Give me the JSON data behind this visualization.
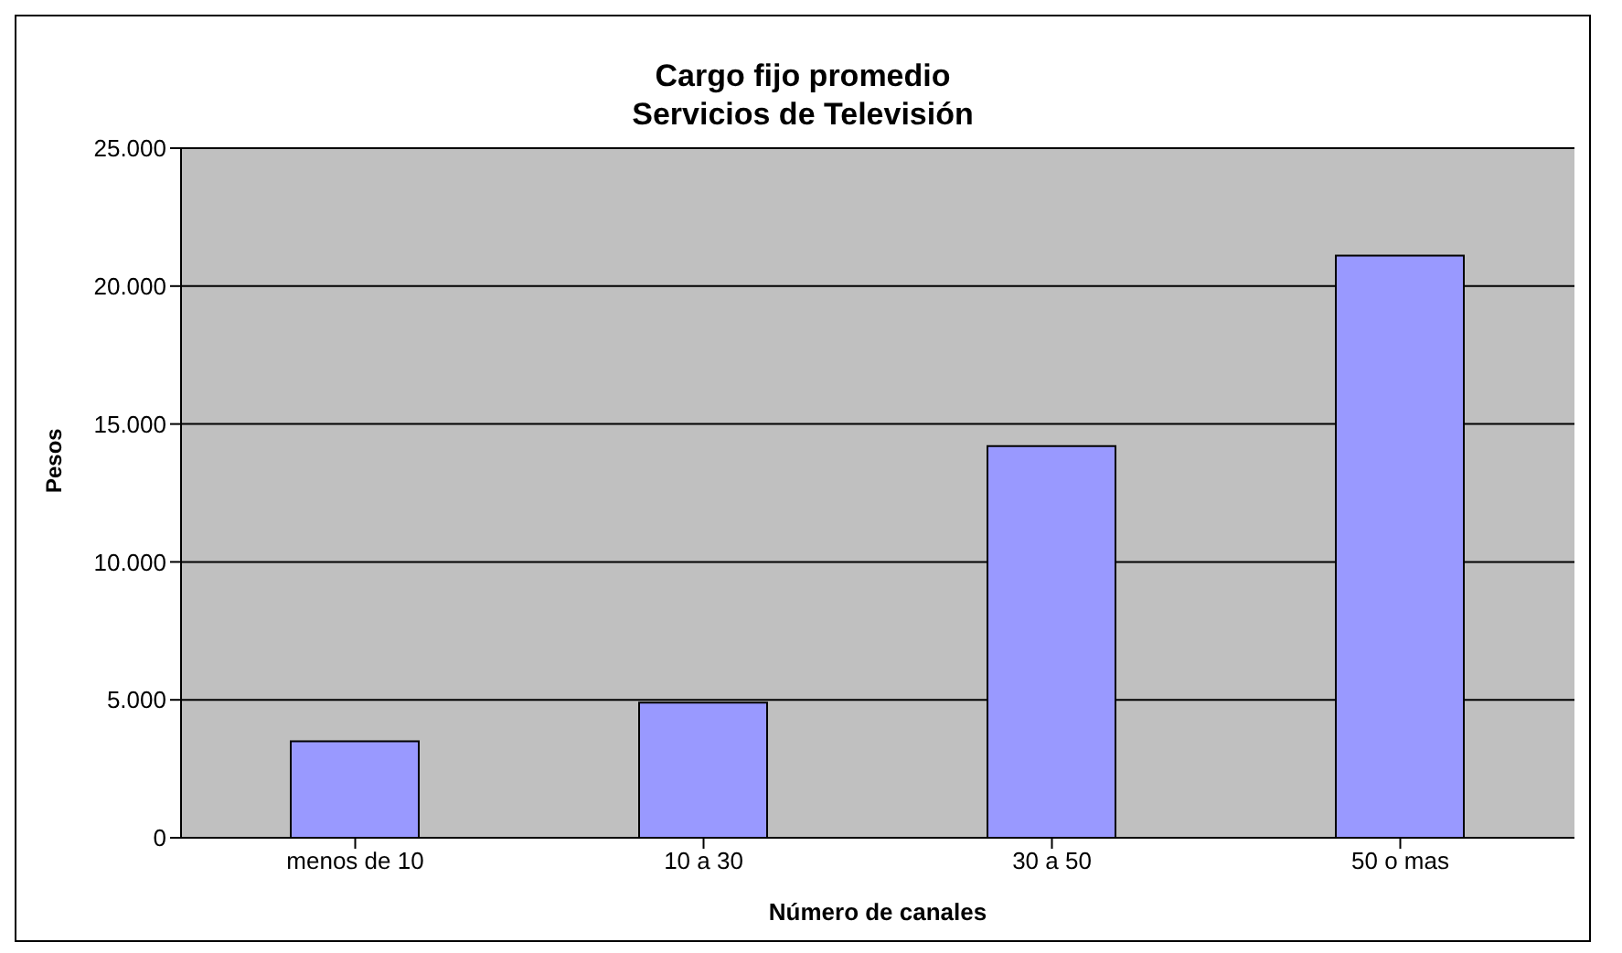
{
  "chart_data": {
    "type": "bar",
    "title": "Cargo fijo promedio\nServicios de Televisión",
    "xlabel": "Número de canales",
    "ylabel": "Pesos",
    "categories": [
      "menos de 10",
      "10 a 30",
      "30 a 50",
      "50 o mas"
    ],
    "values": [
      3500,
      4900,
      14200,
      21100
    ],
    "color": "#9999ff",
    "ylim": [
      0,
      25000
    ],
    "yticks": [
      0,
      {
        "value": 5000,
        "label": "5.000"
      },
      {
        "value": 10000,
        "label": "10.000"
      },
      {
        "value": 15000,
        "label": "15.000"
      },
      {
        "value": 20000,
        "label": "20.000"
      },
      {
        "value": 25000,
        "label": "25.000"
      }
    ],
    "grid": "y",
    "legend": false
  }
}
